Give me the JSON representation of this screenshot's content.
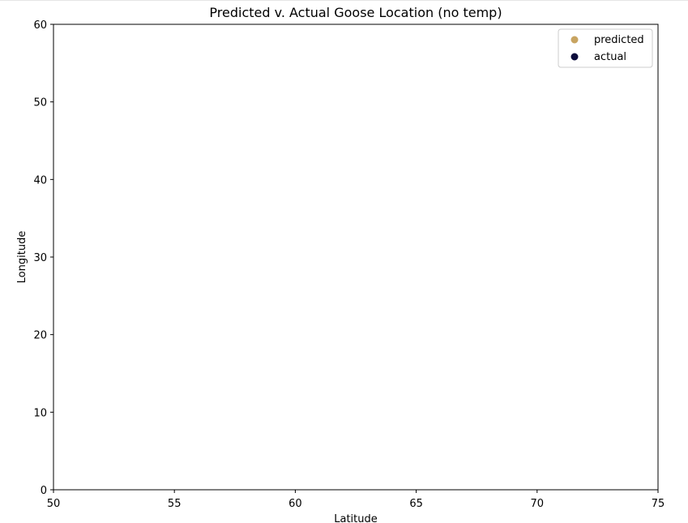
{
  "chart_data": {
    "type": "scatter",
    "title": "Predicted v. Actual Goose Location (no temp)",
    "xlabel": "Latitude",
    "ylabel": "Longitude",
    "xlim": [
      50,
      75
    ],
    "ylim": [
      0,
      60
    ],
    "xticks": [
      "50",
      "55",
      "60",
      "65",
      "70",
      "75"
    ],
    "yticks": [
      "0",
      "10",
      "20",
      "30",
      "40",
      "50",
      "60"
    ],
    "grid": false,
    "legend_position": "top-right",
    "series": [
      {
        "name": "predicted",
        "color": "#c8a461",
        "points": []
      },
      {
        "name": "actual",
        "color": "#0b0b3b",
        "points": []
      }
    ]
  }
}
